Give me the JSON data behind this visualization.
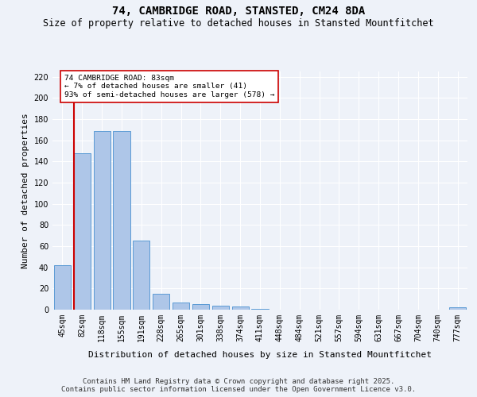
{
  "title": "74, CAMBRIDGE ROAD, STANSTED, CM24 8DA",
  "subtitle": "Size of property relative to detached houses in Stansted Mountfitchet",
  "xlabel": "Distribution of detached houses by size in Stansted Mountfitchet",
  "ylabel": "Number of detached properties",
  "categories": [
    "45sqm",
    "82sqm",
    "118sqm",
    "155sqm",
    "191sqm",
    "228sqm",
    "265sqm",
    "301sqm",
    "338sqm",
    "374sqm",
    "411sqm",
    "448sqm",
    "484sqm",
    "521sqm",
    "557sqm",
    "594sqm",
    "631sqm",
    "667sqm",
    "704sqm",
    "740sqm",
    "777sqm"
  ],
  "values": [
    42,
    148,
    169,
    169,
    65,
    15,
    7,
    5,
    4,
    3,
    1,
    0,
    0,
    0,
    0,
    0,
    0,
    0,
    0,
    0,
    2
  ],
  "bar_color": "#aec6e8",
  "bar_edge_color": "#5b9bd5",
  "vline_color": "#cc0000",
  "annotation_text": "74 CAMBRIDGE ROAD: 83sqm\n← 7% of detached houses are smaller (41)\n93% of semi-detached houses are larger (578) →",
  "annotation_box_color": "#ffffff",
  "annotation_box_edge": "#cc0000",
  "ylim": [
    0,
    225
  ],
  "yticks": [
    0,
    20,
    40,
    60,
    80,
    100,
    120,
    140,
    160,
    180,
    200,
    220
  ],
  "footer_line1": "Contains HM Land Registry data © Crown copyright and database right 2025.",
  "footer_line2": "Contains public sector information licensed under the Open Government Licence v3.0.",
  "background_color": "#eef2f9",
  "grid_color": "#ffffff",
  "title_fontsize": 10,
  "subtitle_fontsize": 8.5,
  "label_fontsize": 8,
  "tick_fontsize": 7,
  "footer_fontsize": 6.5
}
